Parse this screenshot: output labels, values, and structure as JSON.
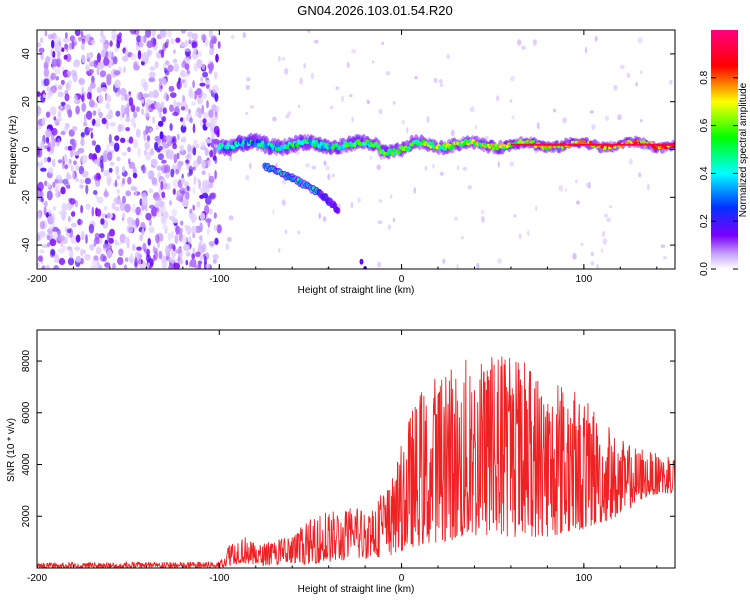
{
  "title": "GN04.2026.103.01.54.R20",
  "chart_data": [
    {
      "type": "heatmap",
      "name": "spectrogram",
      "xlabel": "Height of straight line (km)",
      "ylabel": "Frequency (Hz)",
      "xlim": [
        -200,
        150
      ],
      "ylim": [
        -50,
        50
      ],
      "xticks": [
        -200,
        -100,
        0,
        100
      ],
      "yticks": [
        40,
        20,
        0,
        -20,
        -40
      ],
      "colorbar": {
        "label": "Normalized spectral amplitude",
        "range": [
          0.0,
          1.0
        ],
        "ticks": [
          0.0,
          0.2,
          0.4,
          0.6,
          0.8
        ],
        "tick_labels": [
          "0.0",
          "0.2",
          "0.4",
          "0.6",
          "0.8"
        ],
        "colormap": [
          "#ffffff",
          "#7a00ff",
          "#0033ff",
          "#00ffff",
          "#00ff00",
          "#ffff00",
          "#ff0000",
          "#ff0080"
        ]
      },
      "features": {
        "noise_region_km": [
          -200,
          -100
        ],
        "main_line": {
          "x_start_km": -100,
          "x_end_km": 150,
          "freq_hz": 2
        },
        "secondary_branch": {
          "points_km_hz": [
            [
              -75,
              -7
            ],
            [
              -60,
              -12
            ],
            [
              -45,
              -18
            ],
            [
              -35,
              -25
            ]
          ]
        },
        "isolated_tail": {
          "points_km_hz": [
            [
              -22,
              -47
            ],
            [
              -20,
              -50
            ]
          ]
        }
      }
    },
    {
      "type": "line",
      "name": "snr",
      "xlabel": "Height of straight line (km)",
      "ylabel": "SNR (10 * v/v)",
      "xlim": [
        -200,
        150
      ],
      "ylim": [
        0,
        9200
      ],
      "xticks": [
        -200,
        -100,
        0,
        100
      ],
      "yticks": [
        2000,
        4000,
        6000,
        8000
      ],
      "color": "#ee2222",
      "envelope": [
        {
          "x": -200,
          "lo": 0,
          "hi": 200
        },
        {
          "x": -100,
          "lo": 0,
          "hi": 250
        },
        {
          "x": -95,
          "lo": 100,
          "hi": 900
        },
        {
          "x": -88,
          "lo": 200,
          "hi": 1400
        },
        {
          "x": -80,
          "lo": 100,
          "hi": 900
        },
        {
          "x": -60,
          "lo": 100,
          "hi": 1300
        },
        {
          "x": -45,
          "lo": 200,
          "hi": 2200
        },
        {
          "x": -30,
          "lo": 300,
          "hi": 2300
        },
        {
          "x": -15,
          "lo": 400,
          "hi": 2600
        },
        {
          "x": -5,
          "lo": 500,
          "hi": 3500
        },
        {
          "x": 5,
          "lo": 800,
          "hi": 6200
        },
        {
          "x": 20,
          "lo": 1000,
          "hi": 7800
        },
        {
          "x": 40,
          "lo": 1200,
          "hi": 8300
        },
        {
          "x": 60,
          "lo": 1200,
          "hi": 8600
        },
        {
          "x": 80,
          "lo": 1200,
          "hi": 7600
        },
        {
          "x": 100,
          "lo": 1500,
          "hi": 6600
        },
        {
          "x": 120,
          "lo": 2000,
          "hi": 5000
        },
        {
          "x": 135,
          "lo": 2800,
          "hi": 4500
        },
        {
          "x": 150,
          "lo": 2900,
          "hi": 4300
        }
      ]
    }
  ]
}
